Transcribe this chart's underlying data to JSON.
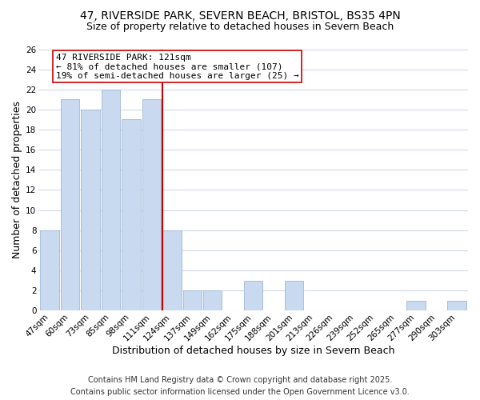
{
  "title1": "47, RIVERSIDE PARK, SEVERN BEACH, BRISTOL, BS35 4PN",
  "title2": "Size of property relative to detached houses in Severn Beach",
  "xlabel": "Distribution of detached houses by size in Severn Beach",
  "ylabel": "Number of detached properties",
  "bin_labels": [
    "47sqm",
    "60sqm",
    "73sqm",
    "85sqm",
    "98sqm",
    "111sqm",
    "124sqm",
    "137sqm",
    "149sqm",
    "162sqm",
    "175sqm",
    "188sqm",
    "201sqm",
    "213sqm",
    "226sqm",
    "239sqm",
    "252sqm",
    "265sqm",
    "277sqm",
    "290sqm",
    "303sqm"
  ],
  "bin_counts": [
    8,
    21,
    20,
    22,
    19,
    21,
    8,
    2,
    2,
    0,
    3,
    0,
    3,
    0,
    0,
    0,
    0,
    0,
    1,
    0,
    1
  ],
  "bar_color": "#c8d9f0",
  "bar_edge_color": "#a0b8d8",
  "highlight_index": 6,
  "highlight_color": "#cc0000",
  "annotation_title": "47 RIVERSIDE PARK: 121sqm",
  "annotation_line1": "← 81% of detached houses are smaller (107)",
  "annotation_line2": "19% of semi-detached houses are larger (25) →",
  "annotation_box_color": "#ffffff",
  "annotation_box_edge": "#cc0000",
  "ylim": [
    0,
    26
  ],
  "yticks": [
    0,
    2,
    4,
    6,
    8,
    10,
    12,
    14,
    16,
    18,
    20,
    22,
    24,
    26
  ],
  "footer1": "Contains HM Land Registry data © Crown copyright and database right 2025.",
  "footer2": "Contains public sector information licensed under the Open Government Licence v3.0.",
  "bg_color": "#ffffff",
  "grid_color": "#d0d8e8",
  "title_fontsize": 10,
  "subtitle_fontsize": 9,
  "axis_label_fontsize": 9,
  "tick_fontsize": 7.5,
  "annotation_fontsize": 8,
  "footer_fontsize": 7
}
